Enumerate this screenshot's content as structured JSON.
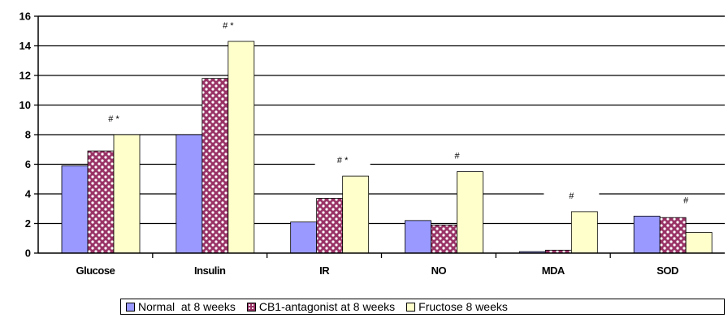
{
  "chart_data": {
    "type": "bar",
    "categories": [
      "Glucose",
      "Insulin",
      "IR",
      "NO",
      "MDA",
      "SOD"
    ],
    "series": [
      {
        "name": "Normal  at 8 weeks",
        "values": [
          5.9,
          8.0,
          2.1,
          2.2,
          0.1,
          2.5
        ],
        "color": "#9999ff",
        "pattern": "solid"
      },
      {
        "name": "CB1-antagonist at 8 weeks",
        "values": [
          6.9,
          11.8,
          3.7,
          1.9,
          0.2,
          2.4
        ],
        "color": "#993366",
        "pattern": "dots"
      },
      {
        "name": "Fructose 8 weeks",
        "values": [
          8.0,
          14.3,
          5.2,
          5.5,
          2.8,
          1.4
        ],
        "color": "#ffffcc",
        "pattern": "solid"
      }
    ],
    "annotations": [
      "# *",
      "# *",
      "# *",
      "#",
      "#",
      "#"
    ],
    "yticks": [
      "0",
      "2",
      "4",
      "6",
      "8",
      "10",
      "12",
      "14",
      "16"
    ],
    "ylim": [
      0,
      16
    ],
    "grid": true,
    "legend_position": "bottom",
    "title": "",
    "xlabel": "",
    "ylabel": ""
  }
}
